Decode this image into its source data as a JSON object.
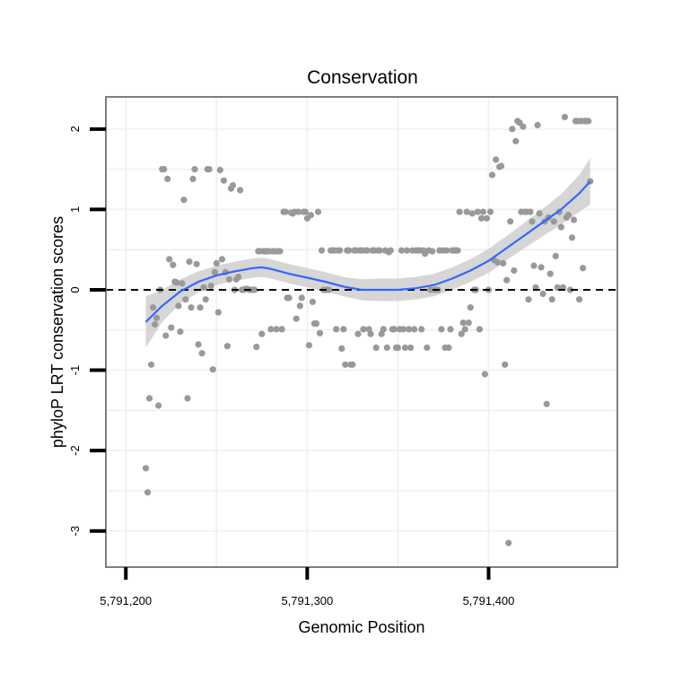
{
  "chart_data": {
    "type": "scatter",
    "title": "Conservation",
    "xlabel": "Genomic Position",
    "ylabel": "phyloP LRT conservation scores",
    "xlim": [
      5791189,
      5791471
    ],
    "ylim": [
      -3.45,
      2.4
    ],
    "x_ticks": [
      5791200,
      5791300,
      5791400
    ],
    "x_tick_labels": [
      "5,791,200",
      "5,791,300",
      "5,791,400"
    ],
    "y_ticks": [
      -3,
      -2,
      -1,
      0,
      1,
      2
    ],
    "y_tick_labels": [
      "-3",
      "-2",
      "-1",
      "0",
      "1",
      "2"
    ],
    "reference_line": {
      "y": 0,
      "style": "dashed"
    },
    "grid": true,
    "legend": "none",
    "colors": {
      "points": "#999999",
      "smooth_line": "#3366FF",
      "confidence_band": "#cccccc"
    },
    "points": [
      [
        5791211,
        -2.22
      ],
      [
        5791212,
        -2.52
      ],
      [
        5791213,
        -1.35
      ],
      [
        5791214,
        -0.93
      ],
      [
        5791215,
        -0.22
      ],
      [
        5791216,
        -0.43
      ],
      [
        5791217,
        -0.35
      ],
      [
        5791218,
        -1.44
      ],
      [
        5791219,
        0.0
      ],
      [
        5791220,
        1.5
      ],
      [
        5791221,
        1.5
      ],
      [
        5791222,
        -0.57
      ],
      [
        5791223,
        1.38
      ],
      [
        5791224,
        0.38
      ],
      [
        5791225,
        -0.47
      ],
      [
        5791226,
        0.31
      ],
      [
        5791227,
        0.1
      ],
      [
        5791228,
        0.09
      ],
      [
        5791229,
        -0.2
      ],
      [
        5791230,
        -0.52
      ],
      [
        5791231,
        0.08
      ],
      [
        5791232,
        1.12
      ],
      [
        5791233,
        -0.12
      ],
      [
        5791234,
        -1.35
      ],
      [
        5791235,
        0.35
      ],
      [
        5791236,
        -0.22
      ],
      [
        5791237,
        1.38
      ],
      [
        5791238,
        1.5
      ],
      [
        5791239,
        0.32
      ],
      [
        5791240,
        -0.68
      ],
      [
        5791241,
        -0.22
      ],
      [
        5791242,
        -0.79
      ],
      [
        5791243,
        0.03
      ],
      [
        5791244,
        -0.12
      ],
      [
        5791245,
        1.5
      ],
      [
        5791246,
        1.5
      ],
      [
        5791247,
        0.05
      ],
      [
        5791248,
        -0.99
      ],
      [
        5791249,
        0.22
      ],
      [
        5791250,
        0.33
      ],
      [
        5791251,
        -0.28
      ],
      [
        5791252,
        1.49
      ],
      [
        5791253,
        0.38
      ],
      [
        5791254,
        1.36
      ],
      [
        5791255,
        0.22
      ],
      [
        5791256,
        -0.7
      ],
      [
        5791257,
        0.13
      ],
      [
        5791258,
        1.26
      ],
      [
        5791259,
        1.3
      ],
      [
        5791260,
        0.0
      ],
      [
        5791261,
        0.13
      ],
      [
        5791262,
        0.16
      ],
      [
        5791263,
        1.24
      ],
      [
        5791264,
        0.0
      ],
      [
        5791265,
        0.0
      ],
      [
        5791266,
        0.01
      ],
      [
        5791267,
        0.01
      ],
      [
        5791268,
        0.0
      ],
      [
        5791269,
        0.0
      ],
      [
        5791270,
        0.0
      ],
      [
        5791271,
        0.0
      ],
      [
        5791272,
        -0.71
      ],
      [
        5791273,
        0.48
      ],
      [
        5791274,
        0.48
      ],
      [
        5791275,
        -0.55
      ],
      [
        5791276,
        0.48
      ],
      [
        5791277,
        0.48
      ],
      [
        5791278,
        0.48
      ],
      [
        5791279,
        0.48
      ],
      [
        5791280,
        -0.49
      ],
      [
        5791281,
        0.48
      ],
      [
        5791282,
        0.48
      ],
      [
        5791283,
        -0.49
      ],
      [
        5791284,
        0.48
      ],
      [
        5791285,
        0.48
      ],
      [
        5791286,
        -0.49
      ],
      [
        5791287,
        0.97
      ],
      [
        5791288,
        0.97
      ],
      [
        5791289,
        -0.1
      ],
      [
        5791290,
        -0.1
      ],
      [
        5791291,
        0.96
      ],
      [
        5791292,
        0.95
      ],
      [
        5791293,
        0.97
      ],
      [
        5791294,
        -0.36
      ],
      [
        5791295,
        0.97
      ],
      [
        5791296,
        -0.2
      ],
      [
        5791297,
        -0.1
      ],
      [
        5791298,
        0.97
      ],
      [
        5791299,
        0.97
      ],
      [
        5791300,
        0.89
      ],
      [
        5791301,
        -0.69
      ],
      [
        5791302,
        0.93
      ],
      [
        5791303,
        -0.15
      ],
      [
        5791304,
        -0.42
      ],
      [
        5791305,
        -0.42
      ],
      [
        5791306,
        0.97
      ],
      [
        5791307,
        -0.54
      ],
      [
        5791308,
        0.49
      ],
      [
        5791309,
        0.0
      ],
      [
        5791310,
        0.0
      ],
      [
        5791311,
        0.0
      ],
      [
        5791312,
        0.0
      ],
      [
        5791313,
        0.49
      ],
      [
        5791314,
        0.49
      ],
      [
        5791315,
        0.49
      ],
      [
        5791316,
        -0.49
      ],
      [
        5791317,
        0.49
      ],
      [
        5791318,
        0.49
      ],
      [
        5791319,
        -0.73
      ],
      [
        5791320,
        -0.49
      ],
      [
        5791321,
        -0.93
      ],
      [
        5791322,
        0.49
      ],
      [
        5791323,
        0.49
      ],
      [
        5791324,
        -0.93
      ],
      [
        5791325,
        -0.93
      ],
      [
        5791326,
        0.49
      ],
      [
        5791327,
        0.49
      ],
      [
        5791328,
        -0.55
      ],
      [
        5791329,
        0.49
      ],
      [
        5791330,
        0.49
      ],
      [
        5791331,
        -0.49
      ],
      [
        5791332,
        0.49
      ],
      [
        5791333,
        0.49
      ],
      [
        5791334,
        -0.49
      ],
      [
        5791335,
        -0.55
      ],
      [
        5791336,
        0.49
      ],
      [
        5791337,
        0.49
      ],
      [
        5791338,
        -0.72
      ],
      [
        5791339,
        0.49
      ],
      [
        5791340,
        0.49
      ],
      [
        5791341,
        -0.55
      ],
      [
        5791342,
        -0.49
      ],
      [
        5791343,
        0.49
      ],
      [
        5791344,
        -0.72
      ],
      [
        5791345,
        0.47
      ],
      [
        5791346,
        0.49
      ],
      [
        5791347,
        -0.49
      ],
      [
        5791348,
        -0.49
      ],
      [
        5791349,
        -0.72
      ],
      [
        5791350,
        -0.72
      ],
      [
        5791351,
        -0.49
      ],
      [
        5791352,
        0.49
      ],
      [
        5791353,
        -0.49
      ],
      [
        5791354,
        -0.72
      ],
      [
        5791355,
        0.49
      ],
      [
        5791356,
        -0.49
      ],
      [
        5791357,
        -0.72
      ],
      [
        5791358,
        0.49
      ],
      [
        5791359,
        -0.49
      ],
      [
        5791360,
        0.49
      ],
      [
        5791361,
        0.49
      ],
      [
        5791362,
        0.49
      ],
      [
        5791363,
        -0.49
      ],
      [
        5791364,
        0.49
      ],
      [
        5791365,
        0.45
      ],
      [
        5791366,
        -0.72
      ],
      [
        5791367,
        0.49
      ],
      [
        5791368,
        0.0
      ],
      [
        5791369,
        0.48
      ],
      [
        5791370,
        0.0
      ],
      [
        5791371,
        0.0
      ],
      [
        5791372,
        0.0
      ],
      [
        5791373,
        0.49
      ],
      [
        5791374,
        -0.49
      ],
      [
        5791375,
        0.49
      ],
      [
        5791376,
        -0.72
      ],
      [
        5791377,
        0.49
      ],
      [
        5791378,
        -0.72
      ],
      [
        5791379,
        -0.49
      ],
      [
        5791380,
        0.49
      ],
      [
        5791381,
        0.49
      ],
      [
        5791382,
        0.49
      ],
      [
        5791383,
        0.49
      ],
      [
        5791384,
        0.97
      ],
      [
        5791385,
        -0.55
      ],
      [
        5791386,
        -0.41
      ],
      [
        5791387,
        -0.49
      ],
      [
        5791388,
        0.97
      ],
      [
        5791389,
        -0.41
      ],
      [
        5791390,
        -0.22
      ],
      [
        5791391,
        0.95
      ],
      [
        5791392,
        0.0
      ],
      [
        5791393,
        0.0
      ],
      [
        5791394,
        0.97
      ],
      [
        5791395,
        -0.49
      ],
      [
        5791396,
        0.89
      ],
      [
        5791397,
        0.97
      ],
      [
        5791398,
        -1.05
      ],
      [
        5791399,
        0.89
      ],
      [
        5791400,
        0.0
      ],
      [
        5791401,
        0.97
      ],
      [
        5791402,
        1.43
      ],
      [
        5791403,
        0.37
      ],
      [
        5791404,
        1.62
      ],
      [
        5791405,
        0.34
      ],
      [
        5791406,
        1.53
      ],
      [
        5791407,
        1.54
      ],
      [
        5791408,
        0.33
      ],
      [
        5791409,
        -0.93
      ],
      [
        5791410,
        0.12
      ],
      [
        5791411,
        -3.15
      ],
      [
        5791412,
        0.85
      ],
      [
        5791413,
        2.0
      ],
      [
        5791414,
        0.24
      ],
      [
        5791415,
        1.85
      ],
      [
        5791416,
        2.1
      ],
      [
        5791417,
        2.08
      ],
      [
        5791418,
        0.97
      ],
      [
        5791419,
        2.03
      ],
      [
        5791420,
        0.97
      ],
      [
        5791421,
        0.97
      ],
      [
        5791422,
        -0.12
      ],
      [
        5791423,
        0.97
      ],
      [
        5791424,
        0.85
      ],
      [
        5791425,
        0.3
      ],
      [
        5791426,
        0.03
      ],
      [
        5791427,
        2.05
      ],
      [
        5791428,
        0.95
      ],
      [
        5791429,
        0.28
      ],
      [
        5791430,
        -0.05
      ],
      [
        5791431,
        0.85
      ],
      [
        5791432,
        -1.42
      ],
      [
        5791433,
        0.9
      ],
      [
        5791434,
        0.2
      ],
      [
        5791435,
        -0.12
      ],
      [
        5791436,
        0.85
      ],
      [
        5791437,
        0.42
      ],
      [
        5791438,
        0.03
      ],
      [
        5791439,
        0.97
      ],
      [
        5791440,
        0.78
      ],
      [
        5791441,
        0.03
      ],
      [
        5791442,
        2.15
      ],
      [
        5791443,
        0.9
      ],
      [
        5791444,
        0.93
      ],
      [
        5791445,
        0.0
      ],
      [
        5791446,
        0.65
      ],
      [
        5791447,
        0.87
      ],
      [
        5791448,
        2.1
      ],
      [
        5791449,
        2.1
      ],
      [
        5791450,
        -0.12
      ],
      [
        5791451,
        2.1
      ],
      [
        5791452,
        0.27
      ],
      [
        5791453,
        2.1
      ],
      [
        5791454,
        2.1
      ],
      [
        5791455,
        2.1
      ],
      [
        5791456,
        1.35
      ]
    ],
    "smooth": {
      "x": [
        5791211,
        5791220,
        5791230,
        5791240,
        5791250,
        5791260,
        5791270,
        5791275,
        5791280,
        5791290,
        5791300,
        5791310,
        5791320,
        5791330,
        5791340,
        5791350,
        5791360,
        5791370,
        5791380,
        5791390,
        5791400,
        5791410,
        5791420,
        5791430,
        5791440,
        5791450,
        5791456
      ],
      "y": [
        -0.4,
        -0.2,
        -0.02,
        0.1,
        0.18,
        0.23,
        0.27,
        0.28,
        0.26,
        0.2,
        0.15,
        0.1,
        0.04,
        0.0,
        0.0,
        0.0,
        0.02,
        0.06,
        0.14,
        0.24,
        0.36,
        0.52,
        0.68,
        0.84,
        1.0,
        1.2,
        1.35
      ],
      "lower": [
        -0.72,
        -0.4,
        -0.17,
        -0.03,
        0.06,
        0.11,
        0.15,
        0.16,
        0.14,
        0.08,
        0.03,
        -0.02,
        -0.08,
        -0.13,
        -0.14,
        -0.14,
        -0.12,
        -0.08,
        0.0,
        0.1,
        0.21,
        0.37,
        0.52,
        0.67,
        0.81,
        0.97,
        1.06
      ],
      "upper": [
        -0.08,
        0.0,
        0.13,
        0.23,
        0.3,
        0.35,
        0.39,
        0.4,
        0.38,
        0.32,
        0.27,
        0.22,
        0.16,
        0.13,
        0.14,
        0.14,
        0.16,
        0.2,
        0.28,
        0.38,
        0.51,
        0.67,
        0.84,
        1.01,
        1.19,
        1.43,
        1.64
      ]
    }
  }
}
